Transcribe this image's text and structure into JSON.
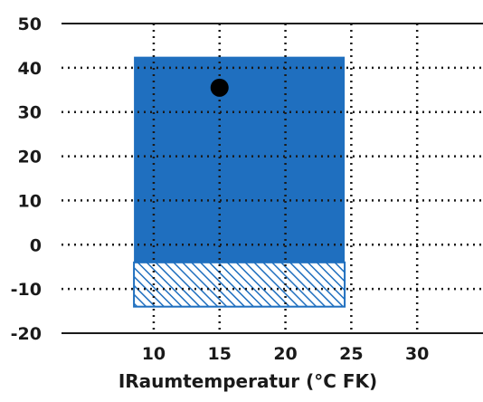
{
  "chart_data": {
    "type": "area",
    "title": "",
    "xlabel": "IRaumtemperatur (°C FK)",
    "ylabel": "",
    "xlim": [
      3,
      35
    ],
    "ylim": [
      -20,
      50
    ],
    "x_ticks": [
      "10",
      "15",
      "20",
      "25",
      "30"
    ],
    "y_ticks": [
      "50",
      "40",
      "30",
      "20",
      "10",
      "0",
      "-10",
      "-20"
    ],
    "grid": true,
    "grid_style": "dotted",
    "regions": [
      {
        "kind": "solid",
        "x": [
          8.5,
          24.5
        ],
        "y": [
          -4,
          42.5
        ],
        "color": "#1f6fbf"
      },
      {
        "kind": "hatched",
        "x": [
          8.5,
          24.5
        ],
        "y": [
          -14,
          -4
        ],
        "color": "#1f6fbf"
      }
    ],
    "points": [
      {
        "x": 15,
        "y": 35.5,
        "color": "#000000"
      }
    ]
  }
}
